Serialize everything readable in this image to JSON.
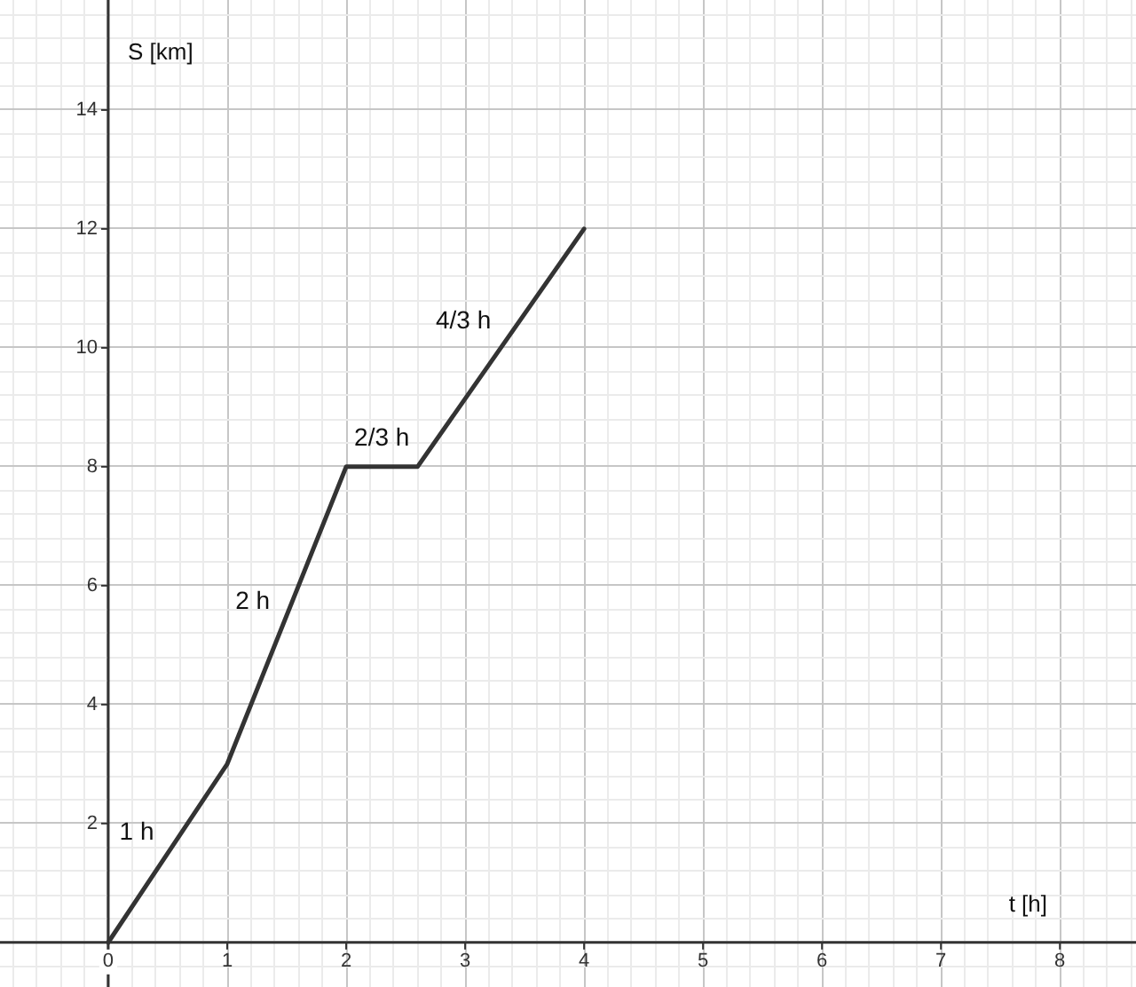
{
  "chart_data": {
    "type": "line",
    "xlabel": "t [h]",
    "ylabel": "S [km]",
    "x": [
      0,
      1,
      2,
      2.6,
      4
    ],
    "values": [
      0,
      3,
      8,
      8,
      12
    ],
    "color": "#333333",
    "marker": "none",
    "line_style": "solid",
    "grid": true,
    "xlim": [
      -0.91,
      8.64
    ],
    "ylim": [
      -0.75,
      15.85
    ],
    "xticks": [
      {
        "value": -0.8,
        "label": null
      },
      {
        "value": -0.6,
        "label": null
      },
      {
        "value": -0.4,
        "label": null
      },
      {
        "value": -0.2,
        "label": null
      },
      0,
      {
        "value": 0.2,
        "label": null
      },
      {
        "value": 0.4,
        "label": null
      },
      {
        "value": 0.6,
        "label": null
      },
      {
        "value": 0.8,
        "label": null
      },
      1,
      {
        "value": 1.2,
        "label": null
      },
      {
        "value": 1.4,
        "label": null
      },
      {
        "value": 1.6,
        "label": null
      },
      {
        "value": 1.8,
        "label": null
      },
      2,
      {
        "value": 2.2,
        "label": null
      },
      {
        "value": 2.4,
        "label": null
      },
      {
        "value": 2.6,
        "label": null
      },
      {
        "value": 2.8,
        "label": null
      },
      3,
      {
        "value": 3.2,
        "label": null
      },
      {
        "value": 3.4,
        "label": null
      },
      {
        "value": 3.6,
        "label": null
      },
      {
        "value": 3.8,
        "label": null
      },
      4,
      {
        "value": 4.2,
        "label": null
      },
      {
        "value": 4.4,
        "label": null
      },
      {
        "value": 4.6,
        "label": null
      },
      {
        "value": 4.8,
        "label": null
      },
      5,
      {
        "value": 5.2,
        "label": null
      },
      {
        "value": 5.4,
        "label": null
      },
      {
        "value": 5.6,
        "label": null
      },
      {
        "value": 5.8,
        "label": null
      },
      6,
      {
        "value": 6.2,
        "label": null
      },
      {
        "value": 6.4,
        "label": null
      },
      {
        "value": 6.6,
        "label": null
      },
      {
        "value": 6.8,
        "label": null
      },
      7,
      {
        "value": 7.2,
        "label": null
      },
      {
        "value": 7.4,
        "label": null
      },
      {
        "value": 7.6,
        "label": null
      },
      {
        "value": 7.8,
        "label": null
      },
      8,
      {
        "value": 8.2,
        "label": null
      },
      {
        "value": 8.4,
        "label": null
      },
      {
        "value": 8.6,
        "label": null
      }
    ],
    "yticks": [
      {
        "value": -0.4,
        "label": null
      },
      {
        "value": 0,
        "label": null
      },
      {
        "value": 0.4,
        "label": null
      },
      {
        "value": 0.8,
        "label": null
      },
      {
        "value": 1.2,
        "label": null
      },
      {
        "value": 1.6,
        "label": null
      },
      2,
      {
        "value": 2.4,
        "label": null
      },
      {
        "value": 2.8,
        "label": null
      },
      {
        "value": 3.2,
        "label": null
      },
      {
        "value": 3.6,
        "label": null
      },
      4,
      {
        "value": 4.4,
        "label": null
      },
      {
        "value": 4.8,
        "label": null
      },
      {
        "value": 5.2,
        "label": null
      },
      {
        "value": 5.6,
        "label": null
      },
      6,
      {
        "value": 6.4,
        "label": null
      },
      {
        "value": 6.8,
        "label": null
      },
      {
        "value": 7.2,
        "label": null
      },
      {
        "value": 7.6,
        "label": null
      },
      8,
      {
        "value": 8.4,
        "label": null
      },
      {
        "value": 8.8,
        "label": null
      },
      {
        "value": 9.2,
        "label": null
      },
      {
        "value": 9.6,
        "label": null
      },
      10,
      {
        "value": 10.4,
        "label": null
      },
      {
        "value": 10.8,
        "label": null
      },
      {
        "value": 11.2,
        "label": null
      },
      {
        "value": 11.6,
        "label": null
      },
      12,
      {
        "value": 12.4,
        "label": null
      },
      {
        "value": 12.8,
        "label": null
      },
      {
        "value": 13.2,
        "label": null
      },
      {
        "value": 13.6,
        "label": null
      },
      14,
      {
        "value": 14.4,
        "label": null
      },
      {
        "value": 14.8,
        "label": null
      },
      {
        "value": 15.2,
        "label": null
      },
      {
        "value": 15.6,
        "label": null
      }
    ],
    "annotations": [
      "1 h",
      "2 h",
      "2/3 h",
      "4/3 h"
    ]
  }
}
